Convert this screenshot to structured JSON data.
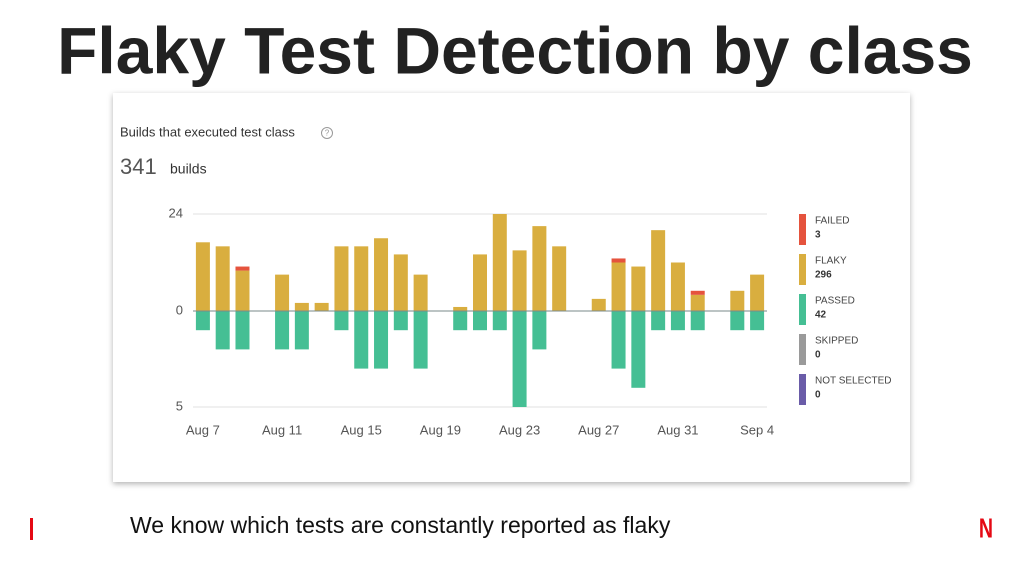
{
  "title": "Flaky Test Detection by class",
  "caption": "We know which tests are constantly reported as flaky",
  "logo": "N",
  "chart_data": {
    "type": "bar",
    "stacked": true,
    "title": "Builds that executed test class",
    "total": 341,
    "total_unit": "builds",
    "categories": [
      "Aug 7",
      null,
      null,
      null,
      "Aug 11",
      null,
      null,
      null,
      "Aug 15",
      null,
      null,
      null,
      "Aug 19",
      null,
      null,
      null,
      "Aug 23",
      null,
      null,
      null,
      "Aug 27",
      null,
      null,
      null,
      "Aug 31",
      null,
      null,
      null,
      "Sep 4"
    ],
    "series": [
      {
        "name": "FAILED",
        "total": 3,
        "color": "#e5533d",
        "axis": "y",
        "values": [
          0,
          0,
          1,
          0,
          0,
          0,
          0,
          0,
          0,
          0,
          0,
          0,
          0,
          0,
          0,
          0,
          0,
          0,
          0,
          0,
          0,
          1,
          0,
          0,
          0,
          1,
          0,
          0,
          0
        ]
      },
      {
        "name": "FLAKY",
        "total": 296,
        "color": "#d9ae3f",
        "axis": "y",
        "values": [
          17,
          16,
          10,
          0,
          9,
          2,
          2,
          16,
          16,
          18,
          14,
          9,
          0,
          1,
          14,
          24,
          15,
          21,
          16,
          0,
          3,
          12,
          11,
          20,
          12,
          4,
          0,
          5,
          9
        ]
      },
      {
        "name": "PASSED",
        "total": 42,
        "color": "#45bf94",
        "axis": "y2",
        "values": [
          1,
          2,
          2,
          0,
          2,
          2,
          0,
          1,
          3,
          3,
          1,
          3,
          0,
          1,
          1,
          1,
          5,
          2,
          0,
          0,
          0,
          3,
          4,
          1,
          1,
          1,
          0,
          1,
          1
        ]
      },
      {
        "name": "SKIPPED",
        "total": 0,
        "color": "#9a9a9a",
        "axis": "y2",
        "values": [
          0,
          0,
          0,
          0,
          0,
          0,
          0,
          0,
          0,
          0,
          0,
          0,
          0,
          0,
          0,
          0,
          0,
          0,
          0,
          0,
          0,
          0,
          0,
          0,
          0,
          0,
          0,
          0,
          0
        ]
      },
      {
        "name": "NOT SELECTED",
        "total": 0,
        "color": "#6a5ca8",
        "axis": "y2",
        "values": [
          0,
          0,
          0,
          0,
          0,
          0,
          0,
          0,
          0,
          0,
          0,
          0,
          0,
          0,
          0,
          0,
          0,
          0,
          0,
          0,
          0,
          0,
          0,
          0,
          0,
          0,
          0,
          0,
          0
        ]
      }
    ],
    "ylim": [
      0,
      24
    ],
    "yticks": [
      0,
      24
    ],
    "y2lim": [
      0,
      5
    ],
    "y2ticks": [
      5
    ],
    "grid": true,
    "legend_position": "right"
  }
}
